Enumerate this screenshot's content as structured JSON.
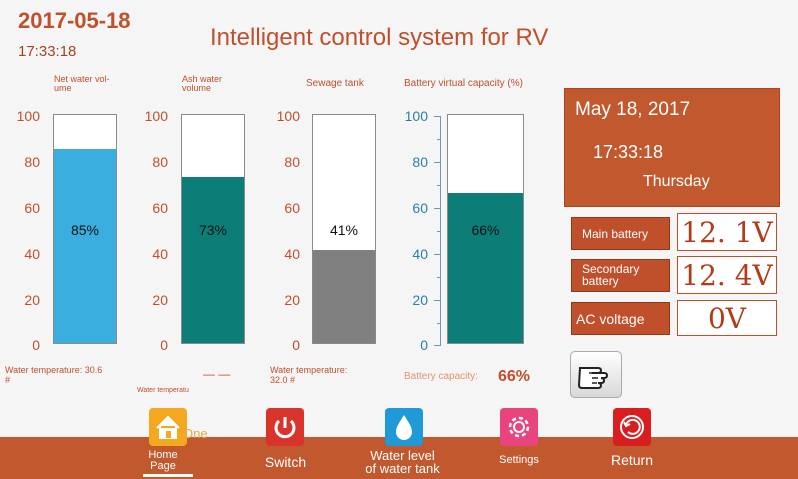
{
  "header": {
    "date": "2017-05-18",
    "time": "17:33:18",
    "title": "Intelligent control system for RV"
  },
  "gauges": {
    "scale_ticks": [
      "100",
      "80",
      "60",
      "40",
      "20",
      "0"
    ],
    "net_water": {
      "label": "Net water vol-ume",
      "label_line1": "Net water vol-",
      "label_line2": "ume",
      "percent": 85,
      "text": "85%",
      "color": "#3aaede"
    },
    "ash_water": {
      "label_line1": "Ash water",
      "label_line2": "volume",
      "percent": 73,
      "text": "73%",
      "color": "#0d7d78"
    },
    "sewage": {
      "label": "Sewage tank",
      "percent": 41,
      "text": "41%",
      "color": "#808080"
    },
    "battery": {
      "label": "Battery virtual capacity (%)",
      "percent": 66,
      "text": "66%",
      "color": "#0d7d78"
    }
  },
  "footnotes": {
    "water_temp_1": "Water temperature: 30.6 #",
    "water_temp_1_line1": "Water temperature: 30.6",
    "water_temp_1_line2": "#",
    "dashes": "— —",
    "water_temp_small": "Water temperatu",
    "water_temp_2_line1": "Water temperature:",
    "water_temp_2_line2": "32.0 #",
    "battery_capacity_label": "Battery capacity:",
    "battery_capacity_value": "66%"
  },
  "clock": {
    "date": "May 18, 2017",
    "time": "17:33:18",
    "day": "Thursday"
  },
  "readouts": {
    "main_battery": {
      "label": "Main battery",
      "value": "12. 1V"
    },
    "secondary_battery": {
      "label_line1": "Secondary",
      "label_line2": "battery",
      "value": "12. 4V"
    },
    "ac_voltage": {
      "label": "AC voltage",
      "value": "0V"
    }
  },
  "nav": {
    "home": {
      "line1": "Home",
      "line2": "Page",
      "overlay": "One"
    },
    "switch": "Switch",
    "water_level": {
      "line1": "Water level",
      "line2": "of water tank"
    },
    "settings": "Settings",
    "return": "Return"
  },
  "colors": {
    "accent": "#c0502b",
    "bar": "#c2582e"
  }
}
